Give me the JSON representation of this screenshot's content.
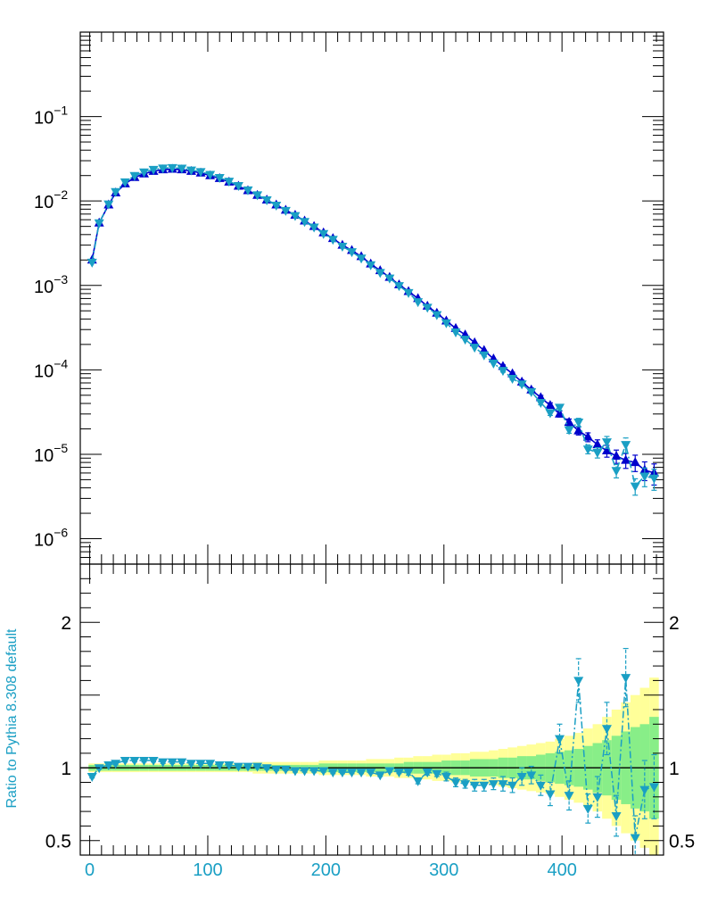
{
  "chart_data": {
    "type": "line",
    "top_panel": {
      "yscale": "log",
      "ylim": [
        5e-07,
        1.0
      ],
      "ytick_labels": [
        {
          "base": "10",
          "exp": "−1",
          "value": 0.1
        },
        {
          "base": "10",
          "exp": "−2",
          "value": 0.01
        },
        {
          "base": "10",
          "exp": "−3",
          "value": 0.001
        },
        {
          "base": "10",
          "exp": "−4",
          "value": 0.0001
        },
        {
          "base": "10",
          "exp": "−5",
          "value": 1e-05
        },
        {
          "base": "10",
          "exp": "−6",
          "value": 1e-06
        }
      ],
      "series": [
        {
          "marker": "triangle-up",
          "style": "solid",
          "color": "#0000cc",
          "x": [
            2,
            8,
            16,
            22,
            30,
            38,
            46,
            54,
            62,
            70,
            78,
            86,
            94,
            102,
            110,
            118,
            126,
            134,
            142,
            150,
            158,
            166,
            174,
            182,
            190,
            198,
            206,
            214,
            222,
            230,
            238,
            246,
            254,
            262,
            270,
            278,
            286,
            294,
            302,
            310,
            318,
            326,
            334,
            342,
            350,
            358,
            366,
            374,
            382,
            390,
            398,
            406,
            414,
            422,
            430,
            438,
            446,
            454,
            462,
            470,
            478
          ],
          "y": [
            0.002,
            0.0055,
            0.009,
            0.0125,
            0.016,
            0.019,
            0.021,
            0.0225,
            0.0235,
            0.0238,
            0.0235,
            0.0225,
            0.0215,
            0.02,
            0.0185,
            0.0168,
            0.015,
            0.0133,
            0.0117,
            0.0103,
            0.009,
            0.0078,
            0.0068,
            0.0058,
            0.005,
            0.0042,
            0.0036,
            0.003,
            0.0026,
            0.0022,
            0.0018,
            0.0015,
            0.00125,
            0.00102,
            0.00085,
            0.0007,
            0.00057,
            0.00047,
            0.00038,
            0.00031,
            0.00026,
            0.00021,
            0.00017,
            0.000135,
            0.00011,
            9e-05,
            7.2e-05,
            5.8e-05,
            4.7e-05,
            3.8e-05,
            3e-05,
            2.4e-05,
            1.9e-05,
            1.6e-05,
            1.3e-05,
            1.1e-05,
            9.5e-06,
            8.5e-06,
            8e-06,
            6.5e-06,
            6e-06
          ],
          "rel_err": [
            0.005,
            0.005,
            0.005,
            0.005,
            0.005,
            0.005,
            0.005,
            0.005,
            0.005,
            0.005,
            0.005,
            0.005,
            0.005,
            0.005,
            0.005,
            0.005,
            0.005,
            0.005,
            0.005,
            0.005,
            0.005,
            0.005,
            0.005,
            0.005,
            0.005,
            0.005,
            0.005,
            0.005,
            0.005,
            0.005,
            0.01,
            0.01,
            0.01,
            0.01,
            0.01,
            0.01,
            0.01,
            0.01,
            0.02,
            0.02,
            0.02,
            0.03,
            0.03,
            0.03,
            0.04,
            0.04,
            0.05,
            0.05,
            0.06,
            0.07,
            0.08,
            0.09,
            0.11,
            0.12,
            0.14,
            0.16,
            0.18,
            0.2,
            0.22,
            0.25,
            0.28
          ]
        },
        {
          "marker": "triangle-down",
          "style": "dashdot",
          "color": "#1a9fc4",
          "x": [
            2,
            8,
            16,
            22,
            30,
            38,
            46,
            54,
            62,
            70,
            78,
            86,
            94,
            102,
            110,
            118,
            126,
            134,
            142,
            150,
            158,
            166,
            174,
            182,
            190,
            198,
            206,
            214,
            222,
            230,
            238,
            246,
            254,
            262,
            270,
            278,
            286,
            294,
            302,
            310,
            318,
            326,
            334,
            342,
            350,
            358,
            366,
            374,
            382,
            390,
            398,
            406,
            414,
            422,
            430,
            438,
            446,
            454,
            462,
            470,
            478
          ],
          "y": [
            0.00188,
            0.0055,
            0.0092,
            0.0129,
            0.0168,
            0.02,
            0.022,
            0.0236,
            0.0245,
            0.0248,
            0.0244,
            0.0232,
            0.0222,
            0.0206,
            0.0189,
            0.0171,
            0.0152,
            0.0135,
            0.0118,
            0.0103,
            0.0089,
            0.0077,
            0.0067,
            0.0057,
            0.0049,
            0.0041,
            0.0035,
            0.0029,
            0.0025,
            0.0021,
            0.00175,
            0.00142,
            0.00122,
            0.00099,
            0.00082,
            0.00064,
            0.00055,
            0.00045,
            0.00036,
            0.00028,
            0.00023,
            0.000185,
            0.00015,
            0.00012,
            9.8e-05,
            7.9e-05,
            6.8e-05,
            5.5e-05,
            4.1e-05,
            3.1e-05,
            3.6e-05,
            1.95e-05,
            2.4e-05,
            1.15e-05,
            1.05e-05,
            1.4e-05,
            6.4e-06,
            1.3e-05,
            4.2e-06,
            5.5e-06,
            5.2e-06
          ],
          "rel_err": [
            0.005,
            0.005,
            0.005,
            0.005,
            0.005,
            0.005,
            0.005,
            0.005,
            0.005,
            0.005,
            0.005,
            0.005,
            0.005,
            0.005,
            0.005,
            0.005,
            0.005,
            0.005,
            0.005,
            0.005,
            0.005,
            0.005,
            0.005,
            0.005,
            0.005,
            0.005,
            0.005,
            0.005,
            0.005,
            0.005,
            0.01,
            0.01,
            0.01,
            0.01,
            0.01,
            0.01,
            0.01,
            0.01,
            0.02,
            0.02,
            0.02,
            0.03,
            0.03,
            0.03,
            0.04,
            0.04,
            0.05,
            0.05,
            0.06,
            0.07,
            0.08,
            0.09,
            0.11,
            0.12,
            0.14,
            0.16,
            0.18,
            0.2,
            0.22,
            0.25,
            0.28
          ]
        }
      ]
    },
    "ratio_panel": {
      "ylabel": "Ratio to Pythia 8.308 default",
      "ylim": [
        0.4,
        2.4
      ],
      "ytick_labels": [
        "2",
        "1",
        "0.5"
      ],
      "ytick_values": [
        2,
        1,
        0.5
      ],
      "reference_line": 1,
      "x": [
        2,
        8,
        16,
        22,
        30,
        38,
        46,
        54,
        62,
        70,
        78,
        86,
        94,
        102,
        110,
        118,
        126,
        134,
        142,
        150,
        158,
        166,
        174,
        182,
        190,
        198,
        206,
        214,
        222,
        230,
        238,
        246,
        254,
        262,
        270,
        278,
        286,
        294,
        302,
        310,
        318,
        326,
        334,
        342,
        350,
        358,
        366,
        374,
        382,
        390,
        398,
        406,
        414,
        422,
        430,
        438,
        446,
        454,
        462,
        470,
        478
      ],
      "ratio": [
        0.94,
        1.0,
        1.02,
        1.03,
        1.05,
        1.05,
        1.05,
        1.05,
        1.04,
        1.04,
        1.04,
        1.03,
        1.03,
        1.03,
        1.02,
        1.02,
        1.01,
        1.01,
        1.01,
        1.0,
        0.99,
        0.99,
        0.98,
        0.98,
        0.98,
        0.98,
        0.97,
        0.97,
        0.97,
        0.97,
        0.97,
        0.95,
        0.98,
        0.97,
        0.97,
        0.91,
        0.97,
        0.96,
        0.94,
        0.9,
        0.89,
        0.88,
        0.88,
        0.89,
        0.89,
        0.88,
        0.94,
        0.95,
        0.88,
        0.82,
        1.2,
        0.81,
        1.6,
        0.72,
        0.8,
        1.27,
        0.67,
        1.62,
        0.52,
        0.85,
        0.87
      ],
      "ratio_err": [
        0.01,
        0.01,
        0.01,
        0.01,
        0.01,
        0.01,
        0.01,
        0.01,
        0.01,
        0.01,
        0.01,
        0.01,
        0.01,
        0.01,
        0.01,
        0.01,
        0.01,
        0.01,
        0.01,
        0.01,
        0.01,
        0.01,
        0.01,
        0.01,
        0.01,
        0.01,
        0.01,
        0.01,
        0.01,
        0.01,
        0.01,
        0.01,
        0.01,
        0.01,
        0.02,
        0.02,
        0.02,
        0.02,
        0.03,
        0.03,
        0.03,
        0.04,
        0.04,
        0.04,
        0.05,
        0.05,
        0.06,
        0.06,
        0.07,
        0.08,
        0.1,
        0.1,
        0.15,
        0.1,
        0.14,
        0.18,
        0.14,
        0.2,
        0.15,
        0.2,
        0.22
      ],
      "band_outer_halfwidth": [
        0.03,
        0.03,
        0.03,
        0.03,
        0.03,
        0.03,
        0.03,
        0.03,
        0.03,
        0.03,
        0.03,
        0.03,
        0.03,
        0.03,
        0.03,
        0.03,
        0.03,
        0.03,
        0.04,
        0.04,
        0.04,
        0.04,
        0.04,
        0.04,
        0.04,
        0.05,
        0.05,
        0.05,
        0.05,
        0.05,
        0.06,
        0.06,
        0.06,
        0.07,
        0.07,
        0.08,
        0.08,
        0.09,
        0.09,
        0.1,
        0.1,
        0.11,
        0.11,
        0.12,
        0.13,
        0.14,
        0.15,
        0.16,
        0.17,
        0.18,
        0.2,
        0.22,
        0.24,
        0.27,
        0.3,
        0.35,
        0.4,
        0.45,
        0.5,
        0.55,
        0.62
      ],
      "band_inner_halfwidth": [
        0.02,
        0.02,
        0.02,
        0.02,
        0.02,
        0.02,
        0.02,
        0.02,
        0.02,
        0.02,
        0.02,
        0.02,
        0.02,
        0.02,
        0.02,
        0.02,
        0.02,
        0.02,
        0.02,
        0.02,
        0.02,
        0.02,
        0.02,
        0.02,
        0.02,
        0.03,
        0.03,
        0.03,
        0.03,
        0.03,
        0.03,
        0.03,
        0.03,
        0.03,
        0.04,
        0.04,
        0.04,
        0.04,
        0.05,
        0.05,
        0.05,
        0.06,
        0.06,
        0.06,
        0.07,
        0.07,
        0.08,
        0.08,
        0.09,
        0.1,
        0.11,
        0.12,
        0.13,
        0.15,
        0.17,
        0.19,
        0.22,
        0.25,
        0.28,
        0.3,
        0.35
      ],
      "band_colors": {
        "outer": "#ffff99",
        "inner": "#88ee88"
      }
    },
    "x_axis": {
      "xlim": [
        -8,
        486
      ],
      "tick_labels": [
        "0",
        "100",
        "200",
        "300",
        "400"
      ],
      "tick_values": [
        0,
        100,
        200,
        300,
        400
      ],
      "label_color": "#1a9fc4"
    }
  }
}
